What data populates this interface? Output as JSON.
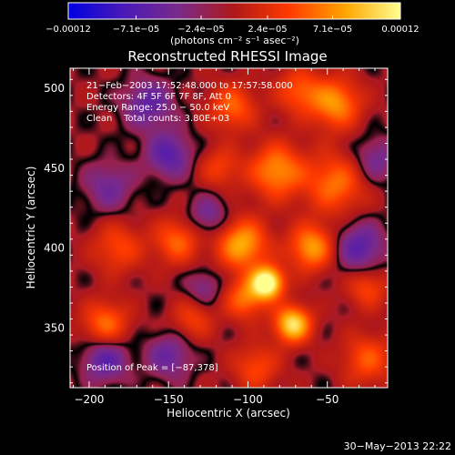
{
  "chart_data": {
    "type": "heatmap",
    "title": "Reconstructed RHESSI Image",
    "xlabel": "Heliocentric X (arcsec)",
    "ylabel": "Heliocentric Y (arcsec)",
    "xlim": [
      -212,
      -12
    ],
    "ylim": [
      312,
      512
    ],
    "x_ticks": [
      -200,
      -150,
      -100,
      -50
    ],
    "x_tick_labels": [
      "−200",
      "−150",
      "−100",
      "−50"
    ],
    "y_ticks": [
      350,
      400,
      450,
      500
    ],
    "y_tick_labels": [
      "350",
      "400",
      "450",
      "500"
    ],
    "colorbar": {
      "min": -0.00012,
      "max": 0.00012,
      "tick_values": [
        -0.00012,
        -7.1e-05,
        -2.4e-05,
        2.4e-05,
        7.1e-05,
        0.00012
      ],
      "tick_labels": [
        "−0.00012",
        "−7.1e−05",
        "−2.4e−05",
        "2.4e−05",
        "7.1e−05",
        "0.00012"
      ],
      "unit_label": "(photons cm⁻² s⁻¹ asec⁻²)",
      "colors": [
        "#0000e0",
        "#4a1ab8",
        "#7a2a8a",
        "#b01818",
        "#ff3a00",
        "#ffa500",
        "#ffff90"
      ]
    },
    "annotations": [
      "21−Feb−2003 17:52:48.000 to 17:57:58.000",
      "Detectors: 4F 5F 6F 7F 8F, Att 0",
      "Energy Range: 25.0 − 50.0 keV",
      "Clean    Total counts: 3.80E+03"
    ],
    "peak_label": "Position of Peak = [−87,378]",
    "peak": [
      -87,
      378
    ],
    "sources": [
      {
        "x": -88,
        "y": 378,
        "amp": 1.2,
        "sigma": 7
      },
      {
        "x": -72,
        "y": 352,
        "amp": 0.95,
        "sigma": 8
      },
      {
        "x": -102,
        "y": 368,
        "amp": 0.55,
        "sigma": 9
      },
      {
        "x": -60,
        "y": 400,
        "amp": 0.7,
        "sigma": 10
      },
      {
        "x": -104,
        "y": 402,
        "amp": 0.75,
        "sigma": 11
      },
      {
        "x": -45,
        "y": 440,
        "amp": 0.55,
        "sigma": 13
      },
      {
        "x": -82,
        "y": 448,
        "amp": 0.65,
        "sigma": 12
      },
      {
        "x": -45,
        "y": 490,
        "amp": 0.65,
        "sigma": 11
      },
      {
        "x": -110,
        "y": 488,
        "amp": 0.5,
        "sigma": 10
      },
      {
        "x": -68,
        "y": 498,
        "amp": 0.45,
        "sigma": 10
      },
      {
        "x": -145,
        "y": 404,
        "amp": 0.5,
        "sigma": 10
      },
      {
        "x": -182,
        "y": 400,
        "amp": 0.4,
        "sigma": 11
      },
      {
        "x": -190,
        "y": 352,
        "amp": 0.55,
        "sigma": 10
      },
      {
        "x": -135,
        "y": 355,
        "amp": 0.35,
        "sigma": 9
      },
      {
        "x": -25,
        "y": 330,
        "amp": 0.45,
        "sigma": 11
      },
      {
        "x": -25,
        "y": 375,
        "amp": 0.4,
        "sigma": 9
      },
      {
        "x": -95,
        "y": 325,
        "amp": 0.4,
        "sigma": 10
      },
      {
        "x": -118,
        "y": 450,
        "amp": 0.35,
        "sigma": 9
      },
      {
        "x": -163,
        "y": 490,
        "amp": -0.45,
        "sigma": 11
      },
      {
        "x": -188,
        "y": 438,
        "amp": -0.35,
        "sigma": 11
      },
      {
        "x": -150,
        "y": 458,
        "amp": -0.5,
        "sigma": 10
      },
      {
        "x": -125,
        "y": 420,
        "amp": -0.35,
        "sigma": 9
      },
      {
        "x": -190,
        "y": 330,
        "amp": -0.5,
        "sigma": 10
      },
      {
        "x": -150,
        "y": 332,
        "amp": -0.4,
        "sigma": 10
      },
      {
        "x": -30,
        "y": 400,
        "amp": -0.5,
        "sigma": 11
      },
      {
        "x": -128,
        "y": 375,
        "amp": -0.3,
        "sigma": 8
      },
      {
        "x": -20,
        "y": 455,
        "amp": -0.35,
        "sigma": 10
      }
    ],
    "background_level": -0.05
  },
  "footer_timestamp": "30−May−2013 22:22"
}
